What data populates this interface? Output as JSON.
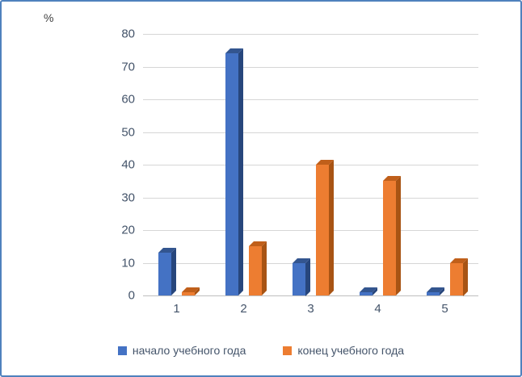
{
  "chart_data": {
    "type": "bar",
    "style": "3d",
    "title": "",
    "ylabel": "%",
    "xlabel": "",
    "categories": [
      "1",
      "2",
      "3",
      "4",
      "5"
    ],
    "series": [
      {
        "name": "начало учебного года",
        "color": "#4472C4",
        "side_color": "#27467c",
        "top_color": "#33558f",
        "values": [
          13,
          74,
          10,
          1,
          1
        ]
      },
      {
        "name": "конец учебного года",
        "color": "#ED7D31",
        "side_color": "#a85414",
        "top_color": "#c05f1a",
        "values": [
          1,
          15,
          40,
          35,
          10
        ]
      }
    ],
    "ylim": [
      0,
      80
    ],
    "ytick_step": 10,
    "grid": true,
    "legend_position": "bottom",
    "frame_color": "#4f81bd",
    "gridline_color": "#d6d6d6"
  }
}
